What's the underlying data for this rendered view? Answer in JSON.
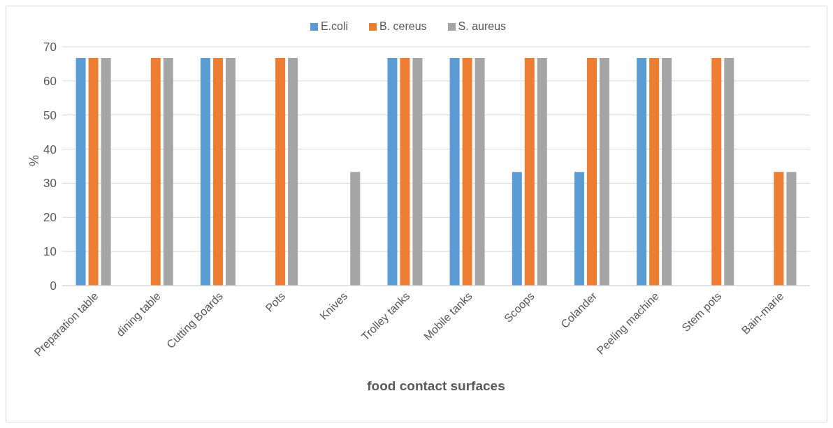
{
  "chart_data": {
    "type": "bar",
    "xlabel": "food contact surfaces",
    "ylabel": "%",
    "categories": [
      "Preparation table",
      "dining table",
      "Cutting Boards",
      "Pots",
      "Knives",
      "Trolley tanks",
      "Mobile tanks",
      "Scoops",
      "Colander",
      "Peeling machine",
      "Stem pots",
      "Bain-marie"
    ],
    "series": [
      {
        "name": "E.coli",
        "color": "#5b9bd5",
        "values": [
          66.7,
          0,
          66.7,
          0,
          0,
          66.7,
          66.7,
          33.3,
          33.3,
          66.7,
          0,
          0
        ]
      },
      {
        "name": "B. cereus",
        "color": "#ed7d31",
        "values": [
          66.7,
          66.7,
          66.7,
          66.7,
          0,
          66.7,
          66.7,
          66.7,
          66.7,
          66.7,
          66.7,
          33.3
        ]
      },
      {
        "name": "S. aureus",
        "color": "#a5a5a5",
        "values": [
          66.7,
          66.7,
          66.7,
          66.7,
          33.3,
          66.7,
          66.7,
          66.7,
          66.7,
          66.7,
          66.7,
          33.3
        ]
      }
    ],
    "ylim": [
      0,
      70
    ],
    "yticks": [
      0,
      10,
      20,
      30,
      40,
      50,
      60,
      70
    ],
    "grid": "y",
    "legend": "top"
  }
}
